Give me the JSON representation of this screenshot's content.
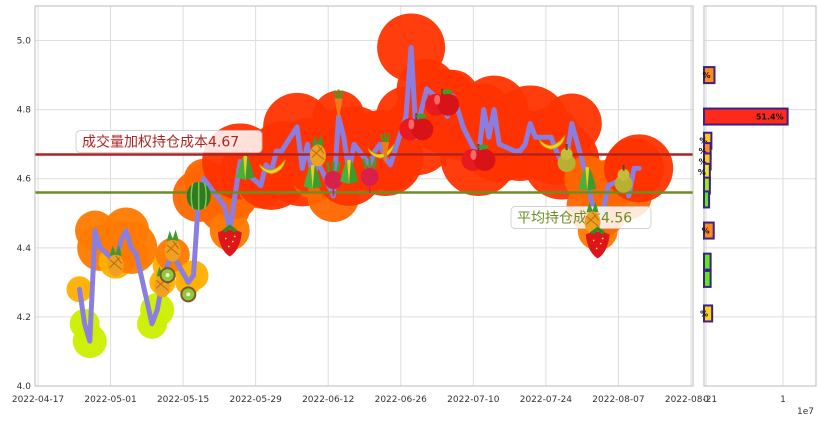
{
  "chart_data": [
    {
      "type": "line",
      "x_ticks": [
        "2022-04-17",
        "2022-05-01",
        "2022-05-15",
        "2022-05-29",
        "2022-06-12",
        "2022-06-26",
        "2022-07-10",
        "2022-07-24",
        "2022-08-07",
        "2022-08-21"
      ],
      "y_ticks": [
        "4.0",
        "4.2",
        "4.4",
        "4.6",
        "4.8",
        "5.0"
      ],
      "ylim": [
        4.0,
        5.1
      ],
      "grid": true,
      "series": [
        {
          "x": [
            "2022-04-25",
            "2022-04-26",
            "2022-04-27",
            "2022-04-28",
            "2022-04-29",
            "2022-05-02",
            "2022-05-03",
            "2022-05-04",
            "2022-05-05",
            "2022-05-06",
            "2022-05-09",
            "2022-05-10",
            "2022-05-11",
            "2022-05-12",
            "2022-05-13",
            "2022-05-16",
            "2022-05-17",
            "2022-05-18",
            "2022-05-19",
            "2022-05-20",
            "2022-05-23",
            "2022-05-24",
            "2022-05-25",
            "2022-05-26",
            "2022-05-27",
            "2022-05-30",
            "2022-05-31",
            "2022-06-01",
            "2022-06-02",
            "2022-06-03",
            "2022-06-06",
            "2022-06-07",
            "2022-06-08",
            "2022-06-09",
            "2022-06-10",
            "2022-06-13",
            "2022-06-14",
            "2022-06-15",
            "2022-06-16",
            "2022-06-17",
            "2022-06-20",
            "2022-06-21",
            "2022-06-22",
            "2022-06-23",
            "2022-06-24",
            "2022-06-27",
            "2022-06-28",
            "2022-06-29",
            "2022-06-30",
            "2022-07-01",
            "2022-07-04",
            "2022-07-05",
            "2022-07-06",
            "2022-07-07",
            "2022-07-08",
            "2022-07-11",
            "2022-07-12",
            "2022-07-13",
            "2022-07-14",
            "2022-07-15",
            "2022-07-18",
            "2022-07-19",
            "2022-07-20",
            "2022-07-21",
            "2022-07-22",
            "2022-07-25",
            "2022-07-26",
            "2022-07-27",
            "2022-07-28",
            "2022-07-29",
            "2022-08-01",
            "2022-08-02",
            "2022-08-03",
            "2022-08-04",
            "2022-08-05",
            "2022-08-08",
            "2022-08-09",
            "2022-08-10",
            "2022-08-11"
          ],
          "values": [
            4.28,
            4.18,
            4.13,
            4.45,
            4.4,
            4.36,
            4.42,
            4.45,
            4.4,
            4.38,
            4.18,
            4.22,
            4.3,
            4.35,
            4.38,
            4.3,
            4.32,
            4.55,
            4.6,
            4.58,
            4.52,
            4.45,
            4.55,
            4.65,
            4.62,
            4.58,
            4.64,
            4.62,
            4.68,
            4.68,
            4.75,
            4.63,
            4.7,
            4.6,
            4.65,
            4.55,
            4.78,
            4.72,
            4.62,
            4.7,
            4.64,
            4.68,
            4.7,
            4.66,
            4.64,
            4.78,
            4.98,
            4.72,
            4.8,
            4.86,
            4.82,
            4.78,
            4.84,
            4.8,
            4.75,
            4.66,
            4.8,
            4.72,
            4.8,
            4.7,
            4.68,
            4.68,
            4.7,
            4.76,
            4.72,
            4.72,
            4.68,
            4.65,
            4.66,
            4.76,
            4.6,
            4.52,
            4.45,
            4.5,
            4.58,
            4.6,
            4.55,
            4.63,
            4.63
          ]
        }
      ],
      "reference_lines": [
        {
          "label": "成交量加权持仓成本4.67",
          "value": 4.67,
          "color": "#b22222"
        },
        {
          "label": "平均持仓成本4.56",
          "value": 4.56,
          "color": "#6b8e23"
        }
      ]
    },
    {
      "type": "bar",
      "orientation": "horizontal",
      "x_ticks": [
        "0",
        "1"
      ],
      "x_multiplier": "1e7",
      "label": "51.4%",
      "bars": [
        {
          "price": 4.9,
          "value": 0.11,
          "label": "%",
          "color": "#ff8c1a"
        },
        {
          "price": 4.78,
          "value": 1.06,
          "label": "51.4%",
          "color": "#ff2a1a"
        },
        {
          "price": 4.71,
          "value": 0.07,
          "label": "%",
          "color": "#ffc81a"
        },
        {
          "price": 4.68,
          "value": 0.06,
          "label": "%",
          "color": "#ff8c1a"
        },
        {
          "price": 4.65,
          "value": 0.06,
          "label": "%",
          "color": "#ffc81a"
        },
        {
          "price": 4.62,
          "value": 0.05,
          "label": "%",
          "color": "#e8e81a"
        },
        {
          "price": 4.58,
          "value": 0.05,
          "label": "",
          "color": "#9be81a"
        },
        {
          "price": 4.54,
          "value": 0.04,
          "label": "",
          "color": "#5ee81a"
        },
        {
          "price": 4.45,
          "value": 0.1,
          "label": "%",
          "color": "#ff8c1a"
        },
        {
          "price": 4.36,
          "value": 0.06,
          "label": "",
          "color": "#5ee81a"
        },
        {
          "price": 4.31,
          "value": 0.06,
          "label": "",
          "color": "#5ee81a"
        },
        {
          "price": 4.21,
          "value": 0.08,
          "label": "%",
          "color": "#ffd21a"
        }
      ]
    }
  ],
  "icons": [
    "pineapple-icon",
    "kiwi-icon",
    "watermelon-icon",
    "strawberry-icon",
    "corn-icon",
    "banana-icon",
    "radish-icon",
    "carrot-icon",
    "apple-icon",
    "pear-icon"
  ]
}
